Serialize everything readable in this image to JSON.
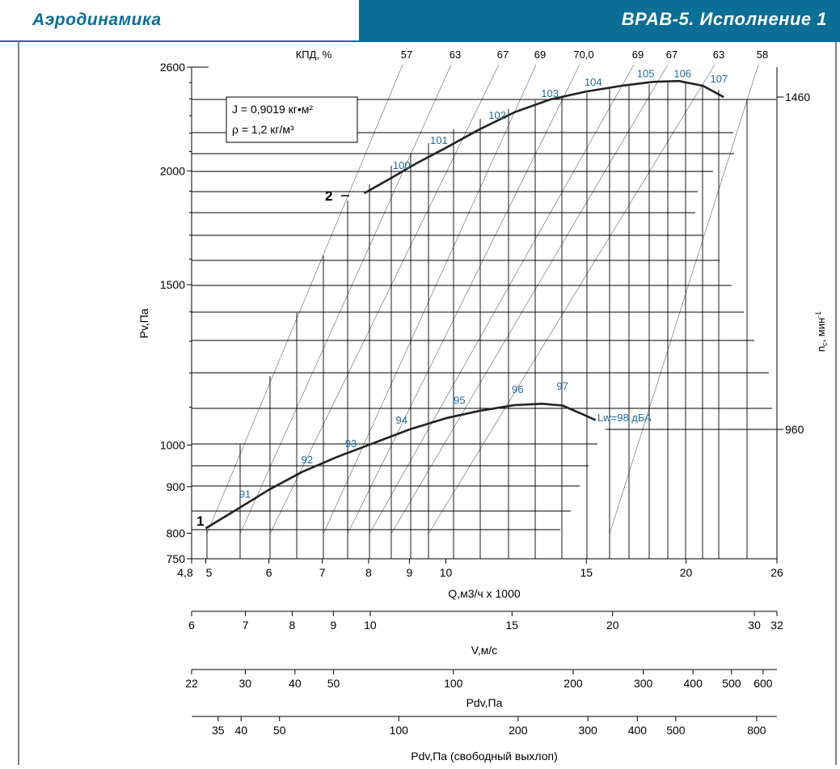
{
  "header": {
    "left_title": "Аэродинамика",
    "right_title": "ВРАВ-5. Исполнение 1"
  },
  "chart_data": {
    "type": "line",
    "ylabel": "Pv,Па",
    "right_axis_label": "n",
    "right_axis_sub": "с",
    "right_axis_unit": ", мин",
    "right_axis_sup": "-1",
    "efficiency_label": "КПД, %",
    "efficiency_ticks": [
      "57",
      "63",
      "67",
      "69",
      "70,0",
      "69",
      "67",
      "63",
      "58"
    ],
    "speed_ticks": [
      "1460",
      "960"
    ],
    "info_box": [
      "J = 0,9019 кг•м²",
      "ρ = 1,2 кг/м³"
    ],
    "curve_labels": [
      "1",
      "2"
    ],
    "lw_label": "Lw=98 дБА",
    "y_ticks": [
      "2600",
      "2000",
      "1500",
      "1000",
      "900",
      "800",
      "750"
    ],
    "y_log_range": [
      750,
      2600
    ],
    "x_range": [
      4.8,
      26
    ],
    "x_ticks": [
      "4,8",
      "5",
      "6",
      "7",
      "8",
      "9",
      "10",
      "15",
      "20",
      "26"
    ],
    "xlabel": "Q,м3/ч x 1000",
    "series": [
      {
        "name": "1",
        "points": [
          [
            5.0,
            810
          ],
          [
            5.5,
            852
          ],
          [
            6.0,
            893
          ],
          [
            6.6,
            934
          ],
          [
            7.3,
            970
          ],
          [
            8.0,
            1000
          ],
          [
            9.0,
            1040
          ],
          [
            10.0,
            1070
          ],
          [
            11.0,
            1090
          ],
          [
            12.2,
            1106
          ],
          [
            13.2,
            1110
          ],
          [
            14.0,
            1105
          ],
          [
            14.8,
            1082
          ],
          [
            15.4,
            1065
          ]
        ],
        "noise_labels": [
          {
            "text": "91",
            "x": 5.6,
            "y": 875
          },
          {
            "text": "92",
            "x": 6.7,
            "y": 955
          },
          {
            "text": "93",
            "x": 7.6,
            "y": 995
          },
          {
            "text": "94",
            "x": 8.8,
            "y": 1055
          },
          {
            "text": "95",
            "x": 10.4,
            "y": 1110
          },
          {
            "text": "96",
            "x": 12.3,
            "y": 1140
          },
          {
            "text": "97",
            "x": 14.0,
            "y": 1150
          }
        ]
      },
      {
        "name": "2",
        "points": [
          [
            7.9,
            1890
          ],
          [
            8.5,
            1960
          ],
          [
            9.2,
            2040
          ],
          [
            10.0,
            2120
          ],
          [
            11.0,
            2220
          ],
          [
            12.2,
            2320
          ],
          [
            13.5,
            2395
          ],
          [
            15.0,
            2445
          ],
          [
            16.6,
            2480
          ],
          [
            18.2,
            2505
          ],
          [
            19.6,
            2510
          ],
          [
            21.0,
            2480
          ],
          [
            22.3,
            2410
          ]
        ],
        "noise_labels": [
          {
            "text": "100",
            "x": 8.8,
            "y": 2010
          },
          {
            "text": "101",
            "x": 9.8,
            "y": 2140
          },
          {
            "text": "102",
            "x": 11.6,
            "y": 2280
          },
          {
            "text": "103",
            "x": 13.5,
            "y": 2410
          },
          {
            "text": "104",
            "x": 15.3,
            "y": 2480
          },
          {
            "text": "105",
            "x": 17.8,
            "y": 2535
          },
          {
            "text": "106",
            "x": 19.8,
            "y": 2535
          },
          {
            "text": "107",
            "x": 22.0,
            "y": 2500
          }
        ]
      }
    ],
    "secondary_scales": [
      {
        "label": "V,м/с",
        "ticks": [
          {
            "v": 6,
            "t": "6"
          },
          {
            "v": 7,
            "t": "7"
          },
          {
            "v": 8,
            "t": "8"
          },
          {
            "v": 9,
            "t": "9"
          },
          {
            "v": 10,
            "t": "10"
          },
          {
            "v": 15,
            "t": "15"
          },
          {
            "v": 20,
            "t": "20"
          },
          {
            "v": 30,
            "t": "30"
          },
          {
            "v": 32,
            "t": "32"
          }
        ],
        "range": [
          6,
          32
        ]
      },
      {
        "label": "Pdv,Па",
        "ticks": [
          {
            "v": 22,
            "t": "22"
          },
          {
            "v": 30,
            "t": "30"
          },
          {
            "v": 40,
            "t": "40"
          },
          {
            "v": 50,
            "t": "50"
          },
          {
            "v": 100,
            "t": "100"
          },
          {
            "v": 200,
            "t": "200"
          },
          {
            "v": 300,
            "t": "300"
          },
          {
            "v": 400,
            "t": "400"
          },
          {
            "v": 500,
            "t": "500"
          },
          {
            "v": 600,
            "t": "600"
          }
        ],
        "range": [
          22,
          650
        ]
      },
      {
        "label": "Pdv,Па (свободный выхлоп)",
        "ticks": [
          {
            "v": 35,
            "t": "35"
          },
          {
            "v": 40,
            "t": "40"
          },
          {
            "v": 50,
            "t": "50"
          },
          {
            "v": 100,
            "t": "100"
          },
          {
            "v": 200,
            "t": "200"
          },
          {
            "v": 300,
            "t": "300"
          },
          {
            "v": 400,
            "t": "400"
          },
          {
            "v": 500,
            "t": "500"
          },
          {
            "v": 800,
            "t": "800"
          }
        ],
        "range": [
          30,
          900
        ]
      }
    ]
  }
}
